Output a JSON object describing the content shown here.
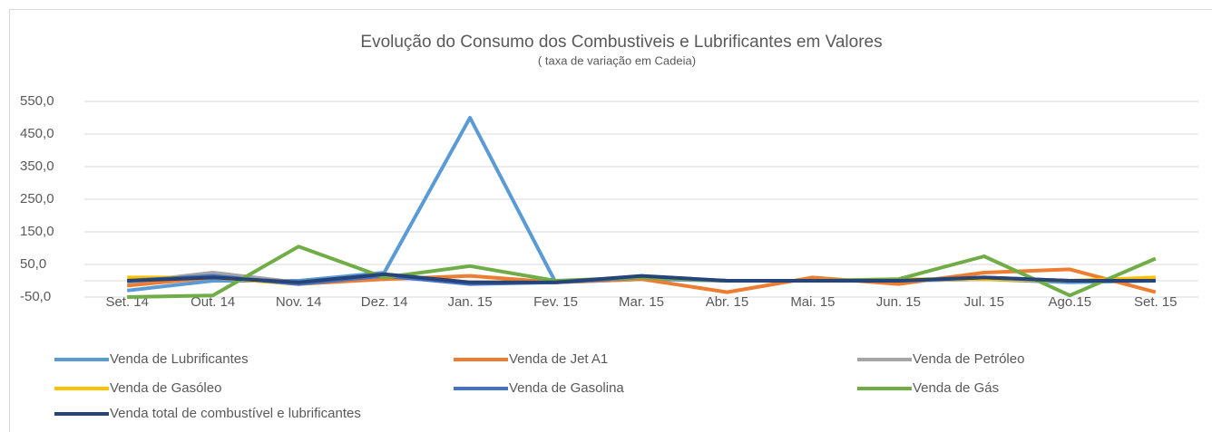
{
  "chart_data": {
    "type": "line",
    "title": "Evolução  do Consumo dos Combustiveis e Lubrificantes em Valores",
    "subtitle": "( taxa de variação em Cadeia)",
    "categories": [
      "Set. 14",
      "Out. 14",
      "Nov. 14",
      "Dez. 14",
      "Jan. 15",
      "Fev. 15",
      "Mar. 15",
      "Abr. 15",
      "Mai. 15",
      "Jun. 15",
      "Jul. 15",
      "Ago.15",
      "Set. 15"
    ],
    "series": [
      {
        "name": "Venda de Lubrificantes",
        "color": "#5b9bd5",
        "values": [
          -30,
          0,
          0,
          25,
          500,
          -5,
          5,
          0,
          0,
          0,
          5,
          -5,
          0
        ]
      },
      {
        "name": "Venda de Jet A1",
        "color": "#ed7d31",
        "values": [
          -15,
          10,
          -10,
          5,
          15,
          -5,
          5,
          -35,
          10,
          -10,
          25,
          35,
          -35
        ]
      },
      {
        "name": "Venda de Petróleo",
        "color": "#a5a5a5",
        "values": [
          -5,
          25,
          -5,
          15,
          -5,
          -5,
          10,
          0,
          0,
          0,
          5,
          0,
          5
        ]
      },
      {
        "name": "Venda de Gasóleo",
        "color": "#ffc000",
        "values": [
          10,
          10,
          -10,
          15,
          -5,
          -5,
          10,
          0,
          0,
          5,
          5,
          0,
          10
        ]
      },
      {
        "name": "Venda de Gasolina",
        "color": "#4472c4",
        "values": [
          0,
          15,
          -10,
          15,
          -10,
          -5,
          10,
          0,
          0,
          0,
          10,
          0,
          0
        ]
      },
      {
        "name": "Venda de Gás",
        "color": "#70ad47",
        "values": [
          -50,
          -45,
          105,
          10,
          45,
          0,
          10,
          0,
          0,
          5,
          75,
          -45,
          68
        ]
      },
      {
        "name": "Venda total de combustível e lubrificantes",
        "color": "#264478",
        "values": [
          0,
          10,
          -5,
          20,
          -5,
          -5,
          15,
          0,
          0,
          0,
          10,
          0,
          0
        ]
      }
    ],
    "ylim": [
      -50,
      550
    ],
    "yticks": [
      {
        "value": -50,
        "label": "-50,0"
      },
      {
        "value": 50,
        "label": "50,0"
      },
      {
        "value": 150,
        "label": "150,0"
      },
      {
        "value": 250,
        "label": "250,0"
      },
      {
        "value": 350,
        "label": "350,0"
      },
      {
        "value": 450,
        "label": "450,0"
      },
      {
        "value": 550,
        "label": "550,0"
      }
    ],
    "grid": true
  }
}
